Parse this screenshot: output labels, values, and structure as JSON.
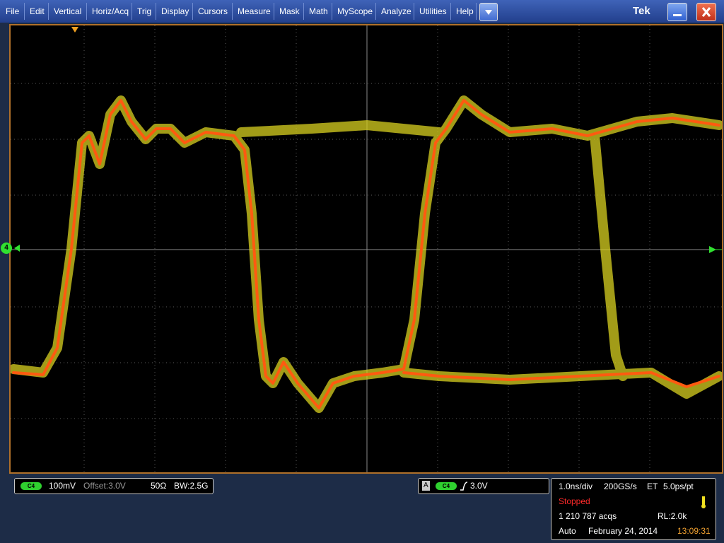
{
  "menu": {
    "items": [
      "File",
      "Edit",
      "Vertical",
      "Horiz/Acq",
      "Trig",
      "Display",
      "Cursors",
      "Measure",
      "Mask",
      "Math",
      "MyScope",
      "Analyze",
      "Utilities",
      "Help"
    ],
    "brand": "Tek"
  },
  "display": {
    "channel_marker": "4"
  },
  "vertical": {
    "badge": "C4",
    "scale": "100mV",
    "offset": "Offset:3.0V",
    "impedance": "50Ω",
    "bandwidth": "BW:2.5G"
  },
  "trigger": {
    "letter": "A",
    "badge": "C4",
    "level": "3.0V"
  },
  "acquisition": {
    "horizontal_scale": "1.0ns/div",
    "sample_rate": "200GS/s",
    "mode": "ET",
    "resolution": "5.0ps/pt",
    "status": "Stopped",
    "acquisitions": "1 210 787 acqs",
    "record_length": "RL:2.0k",
    "trigger_mode": "Auto",
    "date": "February 24, 2014",
    "time": "13:09:31"
  }
}
